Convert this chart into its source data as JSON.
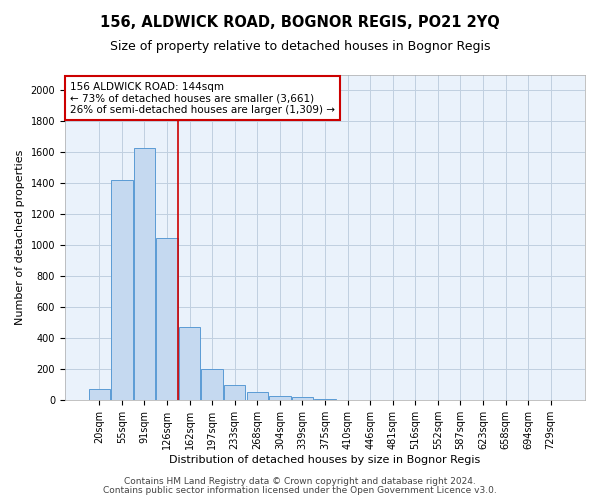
{
  "title": "156, ALDWICK ROAD, BOGNOR REGIS, PO21 2YQ",
  "subtitle": "Size of property relative to detached houses in Bognor Regis",
  "xlabel": "Distribution of detached houses by size in Bognor Regis",
  "ylabel": "Number of detached properties",
  "footnote1": "Contains HM Land Registry data © Crown copyright and database right 2024.",
  "footnote2": "Contains public sector information licensed under the Open Government Licence v3.0.",
  "bin_labels": [
    "20sqm",
    "55sqm",
    "91sqm",
    "126sqm",
    "162sqm",
    "197sqm",
    "233sqm",
    "268sqm",
    "304sqm",
    "339sqm",
    "375sqm",
    "410sqm",
    "446sqm",
    "481sqm",
    "516sqm",
    "552sqm",
    "587sqm",
    "623sqm",
    "658sqm",
    "694sqm",
    "729sqm"
  ],
  "bar_values": [
    75,
    1420,
    1630,
    1050,
    470,
    200,
    100,
    50,
    30,
    20,
    10,
    0,
    0,
    0,
    0,
    0,
    0,
    0,
    0,
    0,
    0
  ],
  "bar_color": "#c5d9f0",
  "bar_edge_color": "#5b9bd5",
  "ylim": [
    0,
    2100
  ],
  "yticks": [
    0,
    200,
    400,
    600,
    800,
    1000,
    1200,
    1400,
    1600,
    1800,
    2000
  ],
  "grid_color": "#c0cfe0",
  "background_color": "#eaf2fb",
  "property_label": "156 ALDWICK ROAD: 144sqm",
  "annotation_line1": "← 73% of detached houses are smaller (3,661)",
  "annotation_line2": "26% of semi-detached houses are larger (1,309) →",
  "red_line_color": "#cc0000",
  "annotation_box_color": "#ffffff",
  "annotation_box_edge": "#cc0000",
  "title_fontsize": 10.5,
  "subtitle_fontsize": 9,
  "axis_label_fontsize": 8,
  "tick_fontsize": 7,
  "annotation_fontsize": 7.5,
  "footnote_fontsize": 6.5
}
